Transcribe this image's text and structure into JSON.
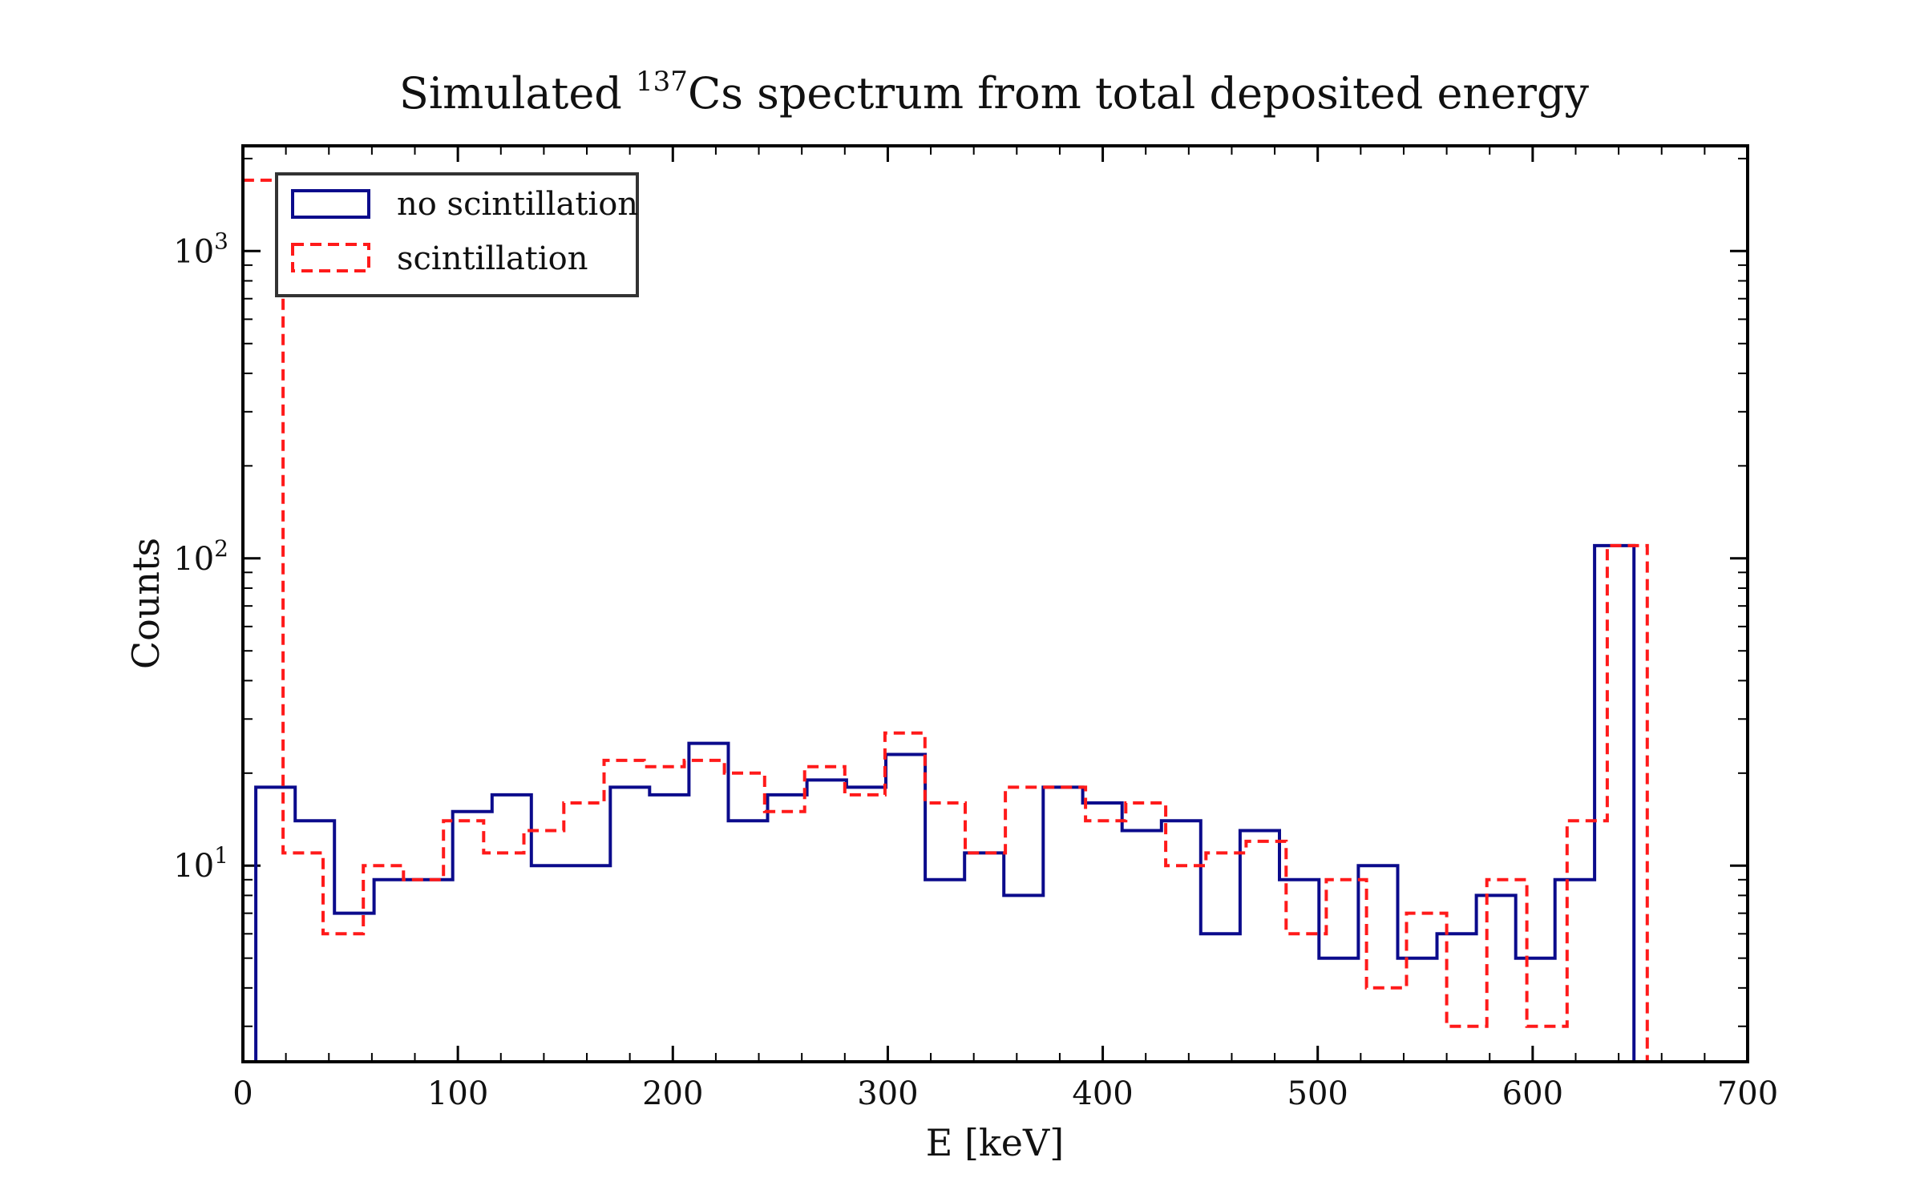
{
  "colors": {
    "no_scintillation": "#0b0b8c",
    "scintillation": "#ff1a1a",
    "frame": "#000000",
    "legend_border": "#333333"
  },
  "chart_data": {
    "type": "step-histogram",
    "title_prefix": "Simulated ",
    "title_super": "137",
    "title_suffix": "Cs spectrum from total deposited energy",
    "xlabel": "E [keV]",
    "ylabel": "Counts",
    "xlim": [
      0,
      700
    ],
    "ylim": [
      2.3,
      2200
    ],
    "yscale": "log",
    "grid": false,
    "legend_position": "top-left",
    "xticks": [
      0,
      100,
      200,
      300,
      400,
      500,
      600,
      700
    ],
    "xtick_labels": [
      "0",
      "100",
      "200",
      "300",
      "400",
      "500",
      "600",
      "700"
    ],
    "yticks": [
      10,
      100,
      1000
    ],
    "ytick_base": "10",
    "ytick_exponents": [
      "1",
      "2",
      "3"
    ],
    "series": [
      {
        "name": "no scintillation",
        "style": "solid",
        "edges": [
          6,
          24.3,
          42.6,
          61.0,
          79.3,
          97.6,
          115.9,
          134.2,
          152.5,
          170.9,
          189.2,
          207.5,
          225.8,
          244.1,
          262.4,
          280.8,
          299.1,
          317.4,
          335.7,
          354.0,
          372.3,
          390.7,
          409.0,
          427.3,
          445.6,
          463.9,
          482.2,
          500.6,
          518.9,
          537.2,
          555.5,
          573.8,
          592.1,
          610.4,
          628.8,
          647.1,
          665.4
        ],
        "counts": [
          18,
          14,
          7,
          9,
          9,
          15,
          17,
          10,
          10,
          18,
          17,
          25,
          14,
          17,
          19,
          18,
          23,
          9,
          11,
          8,
          18,
          16,
          13,
          14,
          6,
          13,
          9,
          5,
          10,
          5,
          6,
          8,
          5,
          9,
          110,
          0
        ]
      },
      {
        "name": "scintillation",
        "style": "dashed",
        "edges": [
          0,
          18.7,
          37.3,
          56.0,
          74.7,
          93.3,
          112.0,
          130.7,
          149.3,
          168.0,
          186.7,
          205.3,
          224.0,
          242.7,
          261.3,
          280.0,
          298.7,
          317.3,
          336.0,
          354.7,
          373.3,
          392.0,
          410.7,
          429.3,
          448.0,
          466.7,
          485.3,
          504.0,
          522.7,
          541.3,
          560.0,
          578.7,
          597.3,
          616.0,
          634.7,
          653.3,
          672.0
        ],
        "counts": [
          1700,
          11,
          6,
          10,
          9,
          14,
          11,
          13,
          16,
          22,
          21,
          22,
          20,
          15,
          21,
          17,
          27,
          16,
          11,
          18,
          18,
          14,
          16,
          10,
          11,
          12,
          6,
          9,
          4,
          7,
          3,
          9,
          3,
          14,
          110,
          0
        ]
      }
    ]
  }
}
